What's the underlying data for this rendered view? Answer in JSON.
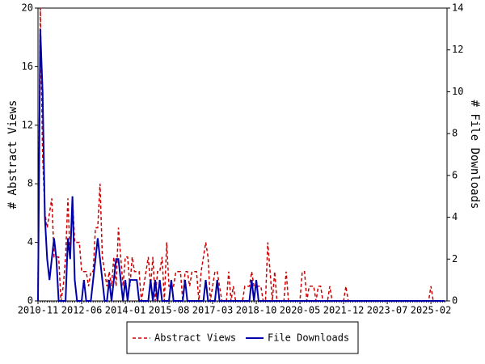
{
  "chart_data": {
    "type": "line",
    "y_label": "# Abstract Views",
    "y2_label": "# File Downloads",
    "categories": [
      "2010-11",
      null,
      null,
      null,
      null,
      null,
      null,
      null,
      null,
      null,
      null,
      null,
      null,
      null,
      null,
      null,
      null,
      null,
      null,
      "2012-06",
      null,
      null,
      null,
      null,
      null,
      null,
      null,
      null,
      null,
      null,
      null,
      null,
      null,
      null,
      null,
      null,
      null,
      null,
      "2014-01",
      null,
      null,
      null,
      null,
      null,
      null,
      null,
      null,
      null,
      null,
      null,
      null,
      null,
      null,
      null,
      null,
      null,
      null,
      "2015-08",
      null,
      null,
      null,
      null,
      null,
      null,
      null,
      null,
      null,
      null,
      null,
      null,
      null,
      null,
      null,
      null,
      null,
      null,
      "2017-03",
      null,
      null,
      null,
      null,
      null,
      null,
      null,
      null,
      null,
      null,
      null,
      null,
      null,
      null,
      null,
      null,
      null,
      null,
      "2018-10",
      null,
      null,
      null,
      null,
      null,
      null,
      null,
      null,
      null,
      null,
      null,
      null,
      null,
      null,
      null,
      null,
      null,
      null,
      "2020-05",
      null,
      null,
      null,
      null,
      null,
      null,
      null,
      null,
      null,
      null,
      null,
      null,
      null,
      null,
      null,
      null,
      null,
      null,
      "2021-12",
      null,
      null,
      null,
      null,
      null,
      null,
      null,
      null,
      null,
      null,
      null,
      null,
      null,
      null,
      null,
      null,
      null,
      null,
      "2023-07",
      null,
      null,
      null,
      null,
      null,
      null,
      null,
      null,
      null,
      null,
      null,
      null,
      null,
      null,
      null,
      null,
      null,
      null,
      "2025-02",
      null,
      null,
      null,
      null,
      null,
      null
    ],
    "series": [
      {
        "name": "Abstract Views",
        "color": "#cc0000",
        "dash": true,
        "values": [
          1,
          20,
          10,
          6,
          5,
          6,
          7,
          3,
          3,
          3,
          0,
          1,
          3,
          7,
          3,
          7,
          4,
          4,
          4,
          2,
          2,
          2,
          1,
          2,
          2,
          5,
          5,
          8,
          3,
          2,
          1,
          2,
          1,
          3,
          1,
          5,
          3,
          1,
          3,
          3,
          1,
          3,
          2,
          2,
          2,
          0,
          1,
          2,
          3,
          1,
          3,
          0,
          2,
          2,
          3,
          0,
          4,
          1,
          1,
          1,
          2,
          2,
          2,
          0,
          2,
          2,
          1,
          2,
          2,
          2,
          0,
          2,
          3,
          4,
          3,
          0,
          1,
          2,
          2,
          1,
          0,
          0,
          0,
          2,
          0,
          1,
          0,
          0,
          0,
          0,
          1,
          1,
          1,
          2,
          1,
          1,
          1,
          1,
          0,
          0,
          4,
          2,
          0,
          2,
          0,
          0,
          0,
          0,
          2,
          0,
          0,
          0,
          0,
          0,
          0,
          2,
          2,
          0,
          1,
          1,
          1,
          0,
          1,
          1,
          0,
          0,
          0,
          1,
          0,
          0,
          0,
          0,
          0,
          0,
          1,
          0,
          0,
          0,
          0,
          0,
          0,
          0,
          0,
          0,
          0,
          0,
          0,
          0,
          0,
          0,
          0,
          0,
          0,
          0,
          0,
          0,
          0,
          0,
          0,
          0,
          0,
          0,
          0,
          0,
          0,
          0,
          0,
          0,
          0,
          0,
          0,
          1,
          0,
          0,
          0,
          0,
          0,
          0
        ]
      },
      {
        "name": "File Downloads",
        "color": "#0000aa",
        "dash": false,
        "axis": "y2",
        "values": [
          0,
          13,
          10,
          4,
          2,
          1,
          2,
          3,
          2,
          0,
          0,
          0,
          0,
          3,
          2,
          5,
          1,
          0,
          0,
          0,
          1,
          0,
          0,
          0,
          1,
          2,
          3,
          2,
          1,
          0,
          0,
          1,
          0,
          1,
          2,
          2,
          1,
          0,
          1,
          0,
          1,
          1,
          1,
          1,
          0,
          0,
          0,
          0,
          0,
          1,
          0,
          1,
          0,
          1,
          0,
          0,
          0,
          0,
          1,
          0,
          0,
          0,
          0,
          0,
          1,
          0,
          0,
          0,
          0,
          0,
          0,
          0,
          0,
          1,
          0,
          0,
          0,
          0,
          1,
          0,
          0,
          0,
          0,
          0,
          0,
          0,
          0,
          0,
          0,
          0,
          0,
          0,
          0,
          1,
          0,
          1,
          0,
          0,
          0,
          0,
          0,
          0,
          0,
          0,
          0,
          0,
          0,
          0,
          0,
          0,
          0,
          0,
          0,
          0,
          0,
          0,
          0,
          0,
          0,
          0,
          0,
          0,
          0,
          0,
          0,
          0,
          0,
          0,
          0,
          0,
          0,
          0,
          0,
          0,
          0,
          0,
          0,
          0,
          0,
          0,
          0,
          0,
          0,
          0,
          0,
          0,
          0,
          0,
          0,
          0,
          0,
          0,
          0,
          0,
          0,
          0,
          0,
          0,
          0,
          0,
          0,
          0,
          0,
          0,
          0,
          0,
          0,
          0,
          0,
          0,
          0,
          0,
          0,
          0,
          0,
          0,
          0,
          0
        ]
      }
    ],
    "ylim": [
      0,
      20
    ],
    "yticks": [
      0,
      4,
      8,
      12,
      16,
      20
    ],
    "y2lim": [
      0,
      14
    ],
    "y2ticks": [
      0,
      2,
      4,
      6,
      8,
      10,
      12,
      14
    ],
    "legend": "bottom"
  }
}
